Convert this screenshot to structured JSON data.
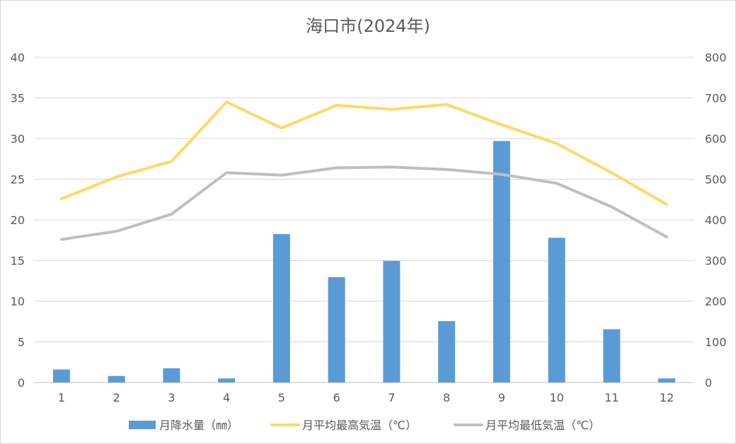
{
  "chart_data": {
    "type": "bar+line",
    "title": "海口市(2024年)",
    "categories": [
      "1",
      "2",
      "3",
      "4",
      "5",
      "6",
      "7",
      "8",
      "9",
      "10",
      "11",
      "12"
    ],
    "left_axis": {
      "min": 0,
      "max": 40,
      "step": 5,
      "ticks": [
        "0",
        "5",
        "10",
        "15",
        "20",
        "25",
        "30",
        "35",
        "40"
      ]
    },
    "right_axis": {
      "min": 0,
      "max": 800,
      "step": 100,
      "ticks": [
        "0",
        "100",
        "200",
        "300",
        "400",
        "500",
        "600",
        "700",
        "800"
      ]
    },
    "grid": true,
    "legend_position": "bottom",
    "series": [
      {
        "name": "月降水量（㎜）",
        "type": "bar",
        "axis": "right",
        "color": "#5b9bd5",
        "values": [
          32,
          16,
          35,
          10,
          365,
          259,
          299,
          151,
          594,
          356,
          131,
          10
        ]
      },
      {
        "name": "月平均最高気温（℃）",
        "type": "line",
        "axis": "left",
        "color": "#ffd966",
        "values": [
          22.6,
          25.3,
          27.2,
          34.5,
          31.3,
          34.1,
          33.6,
          34.2,
          31.7,
          29.4,
          25.8,
          21.9
        ]
      },
      {
        "name": "月平均最低気温（℃）",
        "type": "line",
        "axis": "left",
        "color": "#bfbfbf",
        "values": [
          17.6,
          18.6,
          20.7,
          25.8,
          25.5,
          26.4,
          26.5,
          26.2,
          25.6,
          24.5,
          21.6,
          17.9
        ]
      }
    ]
  }
}
